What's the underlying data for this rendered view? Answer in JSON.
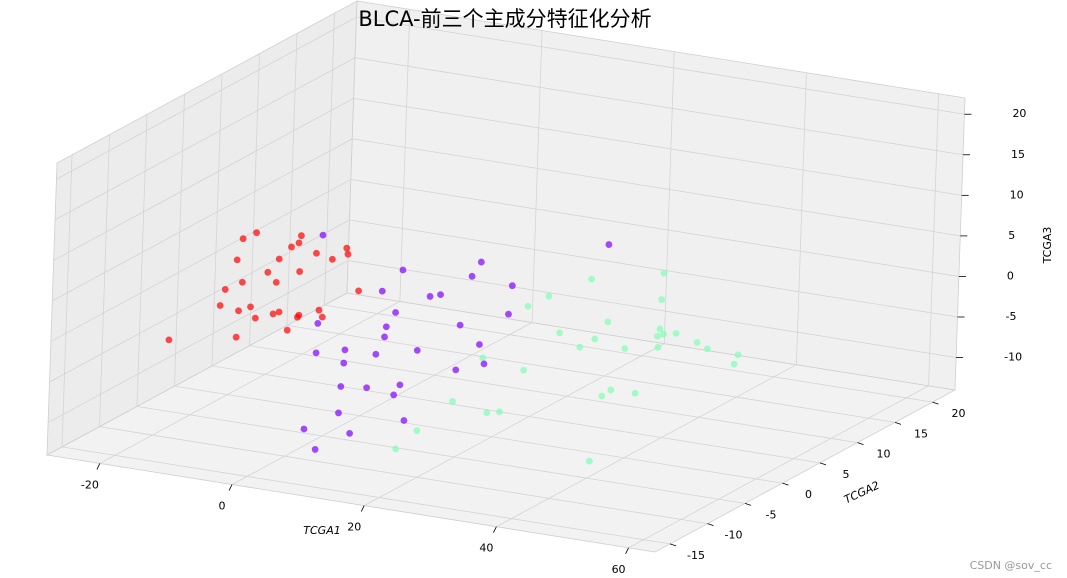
{
  "chart_data": {
    "type": "scatter3d",
    "title": "BLCA-前三个主成分特征化分析",
    "xlabel": "TCGA1",
    "ylabel": "TCGA2",
    "zlabel": "TCGA3",
    "xlim": [
      -28,
      64
    ],
    "ylim": [
      -17,
      23
    ],
    "zlim": [
      -14,
      22
    ],
    "xticks": [
      -20,
      0,
      20,
      40,
      60
    ],
    "yticks": [
      -15,
      -10,
      -5,
      0,
      5,
      10,
      15,
      20
    ],
    "zticks": [
      -10,
      -5,
      0,
      5,
      10,
      15,
      20
    ],
    "grid": true,
    "series": [
      {
        "color": "#80ffb4",
        "x": [
          25,
          30,
          35,
          40,
          28,
          45,
          33,
          50,
          38,
          22,
          42,
          48,
          27,
          36,
          55,
          31,
          44,
          39,
          26,
          52,
          34,
          47,
          29,
          41,
          37,
          20,
          46,
          32,
          43,
          35
        ],
        "y": [
          -10,
          -5,
          0,
          4,
          -8,
          2,
          -3,
          6,
          -1,
          -12,
          3,
          -6,
          -2,
          8,
          1,
          -9,
          -4,
          5,
          -7,
          0,
          10,
          -11,
          -1,
          -3,
          7,
          -13,
          4,
          2,
          -6,
          -2
        ],
        "z": [
          -4,
          -2,
          0,
          -1,
          -6,
          1,
          2,
          -3,
          3,
          -7,
          0,
          -2,
          4,
          1,
          -1,
          -5,
          2,
          -3,
          0,
          1,
          3,
          -8,
          5,
          -4,
          -2,
          -9,
          -1,
          6,
          -3,
          0
        ]
      },
      {
        "color": "#8000ff",
        "x": [
          2,
          8,
          12,
          5,
          15,
          20,
          10,
          3,
          18,
          7,
          14,
          22,
          9,
          6,
          16,
          11,
          4,
          19,
          13,
          24,
          8,
          17,
          1,
          12,
          21,
          10,
          15,
          5,
          23,
          9,
          30,
          -2
        ],
        "y": [
          -8,
          -4,
          -10,
          -2,
          -6,
          -12,
          0,
          -5,
          -3,
          -9,
          2,
          -7,
          -11,
          -1,
          -4,
          -8,
          -6,
          3,
          -13,
          -5,
          -2,
          -10,
          -7,
          5,
          -3,
          -6,
          -9,
          -12,
          -1,
          -14,
          6,
          -4
        ],
        "z": [
          -2,
          0,
          -4,
          3,
          -1,
          -6,
          2,
          -3,
          1,
          -5,
          4,
          -2,
          -7,
          0,
          5,
          -1,
          -4,
          3,
          -8,
          -2,
          6,
          -3,
          1,
          4,
          -1,
          0,
          -5,
          -9,
          2,
          -10,
          8,
          10
        ]
      },
      {
        "color": "#ff0000",
        "x": [
          -15,
          -12,
          -8,
          -5,
          -18,
          -10,
          -3,
          -7,
          -14,
          -9,
          -6,
          -11,
          -2,
          -16,
          -4,
          -13,
          -8,
          -1,
          -10,
          -6,
          -12,
          -5,
          -17,
          -7,
          -3,
          -9,
          -11,
          -4,
          0,
          -14
        ],
        "y": [
          -3,
          -8,
          -5,
          2,
          -10,
          -1,
          -6,
          4,
          -4,
          -9,
          1,
          -2,
          -7,
          -5,
          -11,
          3,
          -3,
          -8,
          0,
          -6,
          -4,
          -1,
          -2,
          -9,
          2,
          -5,
          -7,
          -3,
          -6,
          1
        ],
        "z": [
          2,
          4,
          0,
          5,
          -2,
          6,
          1,
          3,
          8,
          -1,
          4,
          2,
          7,
          0,
          3,
          5,
          -3,
          2,
          6,
          1,
          9,
          -2,
          4,
          3,
          0,
          5,
          1,
          7,
          2,
          3
        ]
      }
    ],
    "watermark": "CSDN @sov_cc"
  }
}
